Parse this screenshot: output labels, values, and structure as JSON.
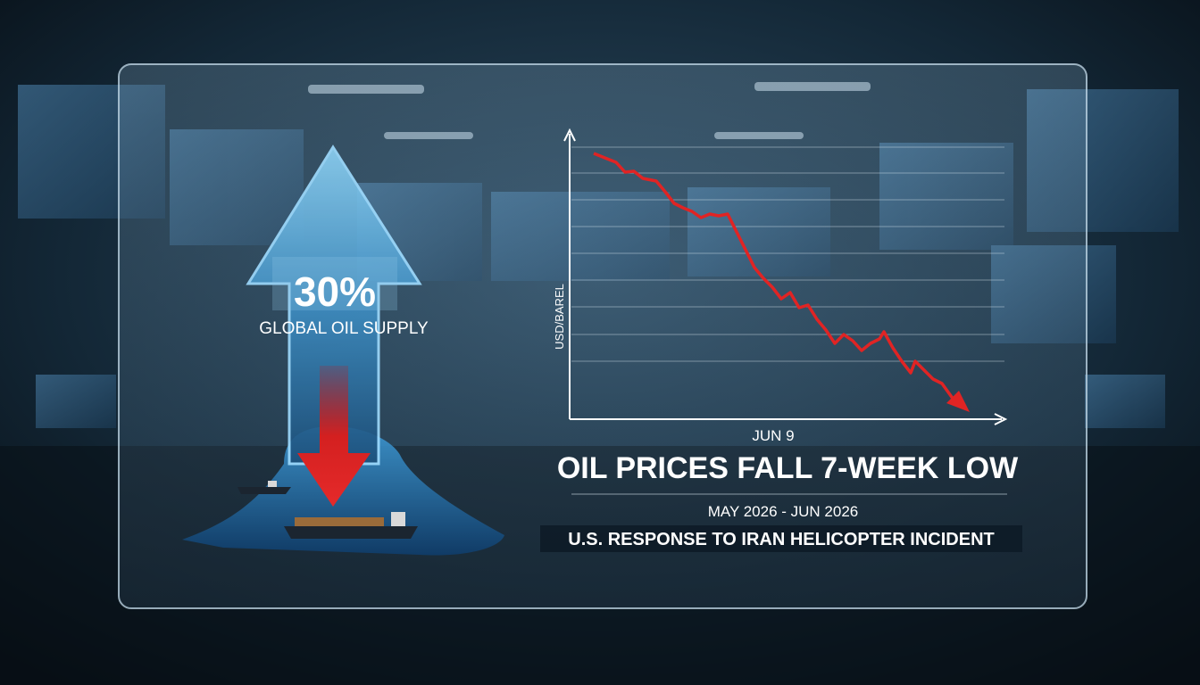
{
  "infographic": {
    "stat": {
      "value": "30%",
      "label": "GLOBAL OIL SUPPLY"
    },
    "chart": {
      "y_label": "USD/BAREL",
      "x_label": "JUN 9"
    },
    "headline": "OIL PRICES FALL 7-WEEK LOW",
    "date_range": "MAY 2026 - JUN 2026",
    "subheadline": "U.S. RESPONSE TO IRAN HELICOPTER INCIDENT"
  }
}
